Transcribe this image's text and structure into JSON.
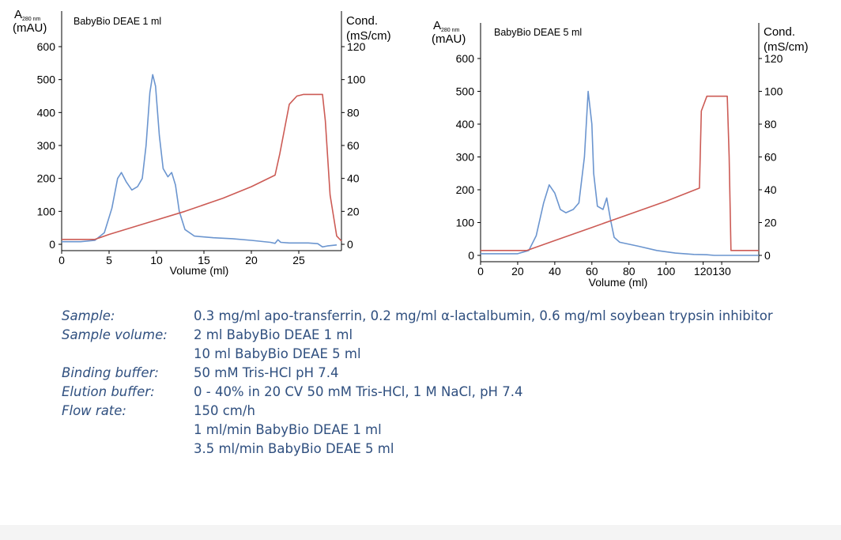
{
  "colors": {
    "absorbance": "#6b95cf",
    "conductivity": "#cc5b55",
    "text": "#2f4f7f"
  },
  "chart_data": [
    {
      "type": "line",
      "title": "BabyBio DEAE 1 ml",
      "ylabel_main": "A",
      "ylabel_sub": "280 nm",
      "ylabel_unit": "(mAU)",
      "y2label_1": "Cond.",
      "y2label_2": "(mS/cm)",
      "xlabel": "Volume (ml)",
      "xlim": [
        0,
        29.5
      ],
      "ylim": [
        0,
        600
      ],
      "y2lim": [
        0,
        120
      ],
      "xticks": [
        0,
        5,
        10,
        15,
        20,
        25
      ],
      "yticks": [
        0,
        100,
        200,
        300,
        400,
        500,
        600
      ],
      "y2ticks": [
        0,
        20,
        40,
        60,
        80,
        100,
        120
      ],
      "series": [
        {
          "axis": "left",
          "values": [
            [
              0,
              8
            ],
            [
              2,
              8
            ],
            [
              3.5,
              12
            ],
            [
              4.5,
              35
            ],
            [
              5.3,
              110
            ],
            [
              5.9,
              200
            ],
            [
              6.3,
              218
            ],
            [
              6.8,
              190
            ],
            [
              7.4,
              165
            ],
            [
              8,
              175
            ],
            [
              8.5,
              200
            ],
            [
              8.9,
              300
            ],
            [
              9.3,
              460
            ],
            [
              9.6,
              515
            ],
            [
              9.9,
              480
            ],
            [
              10.3,
              330
            ],
            [
              10.7,
              230
            ],
            [
              11.2,
              205
            ],
            [
              11.6,
              218
            ],
            [
              12,
              180
            ],
            [
              12.4,
              100
            ],
            [
              13,
              45
            ],
            [
              14,
              25
            ],
            [
              16,
              20
            ],
            [
              18,
              17
            ],
            [
              20,
              12
            ],
            [
              22,
              6
            ],
            [
              22.5,
              3
            ],
            [
              22.8,
              14
            ],
            [
              23.1,
              6
            ],
            [
              24,
              4
            ],
            [
              26,
              4
            ],
            [
              27,
              2
            ],
            [
              27.5,
              -8
            ],
            [
              28,
              -5
            ],
            [
              29,
              -2
            ]
          ]
        },
        {
          "axis": "right",
          "values": [
            [
              0,
              3
            ],
            [
              3.5,
              3
            ],
            [
              5,
              6
            ],
            [
              9,
              13
            ],
            [
              13,
              20
            ],
            [
              17,
              28
            ],
            [
              20,
              35
            ],
            [
              22.5,
              42
            ],
            [
              23,
              55
            ],
            [
              24,
              85
            ],
            [
              24.8,
              90
            ],
            [
              25.5,
              91
            ],
            [
              27.5,
              91
            ],
            [
              27.8,
              75
            ],
            [
              28.3,
              30
            ],
            [
              29,
              5
            ],
            [
              29.5,
              2
            ]
          ]
        }
      ]
    },
    {
      "type": "line",
      "title": "BabyBio DEAE 5 ml",
      "ylabel_main": "A",
      "ylabel_sub": "280 nm",
      "ylabel_unit": "(mAU)",
      "y2label_1": "Cond.",
      "y2label_2": "(mS/cm)",
      "xlabel": "Volume (ml)",
      "xlim": [
        0,
        150
      ],
      "ylim": [
        0,
        600
      ],
      "y2lim": [
        0,
        120
      ],
      "xticks": [
        0,
        20,
        40,
        60,
        80,
        100,
        120,
        130
      ],
      "yticks": [
        0,
        100,
        200,
        300,
        400,
        500,
        600
      ],
      "y2ticks": [
        0,
        20,
        40,
        60,
        80,
        100,
        120
      ],
      "series": [
        {
          "axis": "left",
          "values": [
            [
              0,
              5
            ],
            [
              20,
              5
            ],
            [
              26,
              15
            ],
            [
              30,
              60
            ],
            [
              34,
              160
            ],
            [
              37,
              215
            ],
            [
              40,
              190
            ],
            [
              43,
              140
            ],
            [
              46,
              130
            ],
            [
              50,
              140
            ],
            [
              53,
              160
            ],
            [
              56,
              300
            ],
            [
              58,
              500
            ],
            [
              60,
              400
            ],
            [
              61,
              250
            ],
            [
              63,
              150
            ],
            [
              66,
              140
            ],
            [
              68,
              175
            ],
            [
              70,
              110
            ],
            [
              72,
              55
            ],
            [
              75,
              40
            ],
            [
              85,
              28
            ],
            [
              95,
              15
            ],
            [
              105,
              7
            ],
            [
              115,
              3
            ],
            [
              122,
              2
            ],
            [
              126,
              0
            ],
            [
              135,
              0
            ],
            [
              150,
              0
            ]
          ]
        },
        {
          "axis": "right",
          "values": [
            [
              0,
              3
            ],
            [
              25,
              3
            ],
            [
              40,
              9
            ],
            [
              60,
              17
            ],
            [
              80,
              25
            ],
            [
              100,
              33
            ],
            [
              118,
              41
            ],
            [
              119,
              88
            ],
            [
              122,
              97
            ],
            [
              130,
              97
            ],
            [
              133,
              97
            ],
            [
              134,
              60
            ],
            [
              135,
              3
            ],
            [
              150,
              3
            ]
          ]
        }
      ]
    }
  ],
  "conditions": [
    {
      "label": "Sample:",
      "values": [
        "0.3 mg/ml apo-transferrin, 0.2 mg/ml α-lactalbumin, 0.6 mg/ml soybean trypsin inhibitor"
      ]
    },
    {
      "label": "Sample volume:",
      "values": [
        "2 ml BabyBio DEAE 1 ml",
        "10 ml BabyBio DEAE 5 ml"
      ]
    },
    {
      "label": "Binding buffer:",
      "values": [
        "50 mM Tris-HCl pH 7.4"
      ]
    },
    {
      "label": "Elution buffer:",
      "values": [
        "0 - 40% in 20 CV 50 mM Tris-HCl, 1 M NaCl, pH 7.4"
      ]
    },
    {
      "label": "Flow rate:",
      "values": [
        "150 cm/h",
        "1 ml/min BabyBio DEAE 1 ml",
        "3.5 ml/min BabyBio DEAE 5 ml"
      ]
    }
  ]
}
